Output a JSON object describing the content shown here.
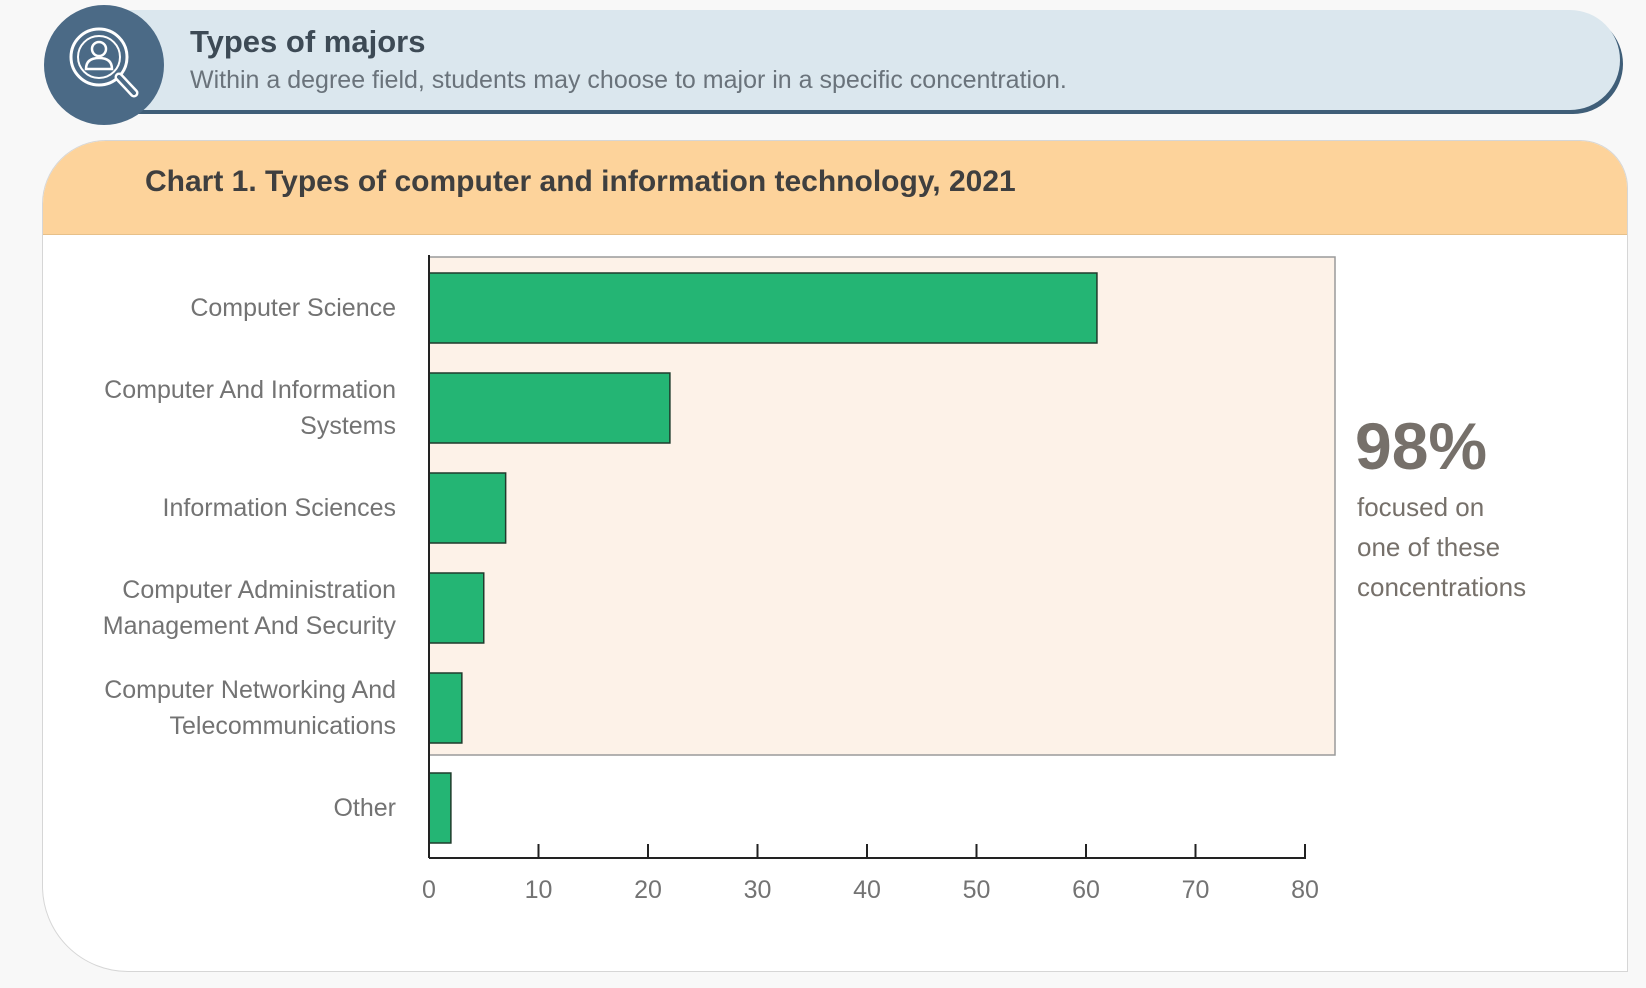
{
  "banner": {
    "title": "Types of majors",
    "subtitle": "Within a degree field, students may choose to major in a specific concentration.",
    "icon": "search-person-icon"
  },
  "callout": {
    "value": "98%",
    "text": "focused on\none of these\nconcentrations"
  },
  "colors": {
    "bar": "#24b574",
    "bar_stroke": "#1f3b2c",
    "highlight": "#fdf2e8",
    "header": "#fdd39b",
    "banner": "#dbe7ee"
  },
  "chart_data": {
    "type": "bar",
    "orientation": "horizontal",
    "title": "Chart 1. Types of computer and information technology, 2021",
    "categories": [
      "Computer Science",
      "Computer And Information\nSystems",
      "Information Sciences",
      "Computer Administration\nManagement And Security",
      "Computer Networking And\nTelecommunications",
      "Other"
    ],
    "values": [
      61,
      22,
      7,
      5,
      3,
      2
    ],
    "xlim": [
      0,
      80
    ],
    "xticks": [
      0,
      10,
      20,
      30,
      40,
      50,
      60,
      70,
      80
    ],
    "highlighted_categories": 5,
    "grid": false,
    "xlabel": "",
    "ylabel": ""
  }
}
